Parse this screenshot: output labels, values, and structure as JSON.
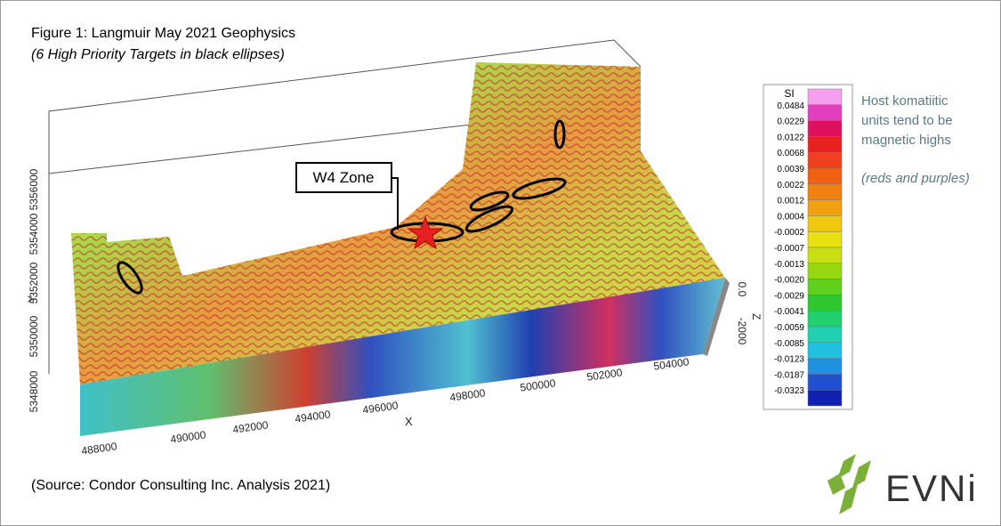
{
  "header": {
    "title": "Figure 1: Langmuir May 2021 Geophysics",
    "subtitle": "(6 High Priority Targets in black ellipses)"
  },
  "callout": {
    "label": "W4 Zone"
  },
  "axes": {
    "y": {
      "label": "Y",
      "ticks": [
        "5348000",
        "5350000",
        "5352000",
        "5354000",
        "5356000"
      ]
    },
    "x": {
      "label": "X",
      "ticks": [
        "488000",
        "490000",
        "492000",
        "494000",
        "496000",
        "498000",
        "500000",
        "502000",
        "504000"
      ]
    },
    "z": {
      "label": "Z",
      "ticks": [
        "0.0",
        "-2000"
      ]
    }
  },
  "colorbar": {
    "title": "SI",
    "labels": [
      "0.0484",
      "0.0229",
      "0.0122",
      "0.0068",
      "0.0039",
      "0.0022",
      "0.0012",
      "0.0004",
      "-0.0002",
      "-0.0007",
      "-0.0013",
      "-0.0020",
      "-0.0029",
      "-0.0041",
      "-0.0059",
      "-0.0085",
      "-0.0123",
      "-0.0187",
      "-0.0323"
    ]
  },
  "note": {
    "lines": [
      "Host komatiitic",
      "units tend to be",
      "magnetic highs"
    ],
    "emphasis": "(reds and purples)"
  },
  "footer": {
    "source": "(Source: Condor Consulting Inc. Analysis 2021)",
    "logo": "EVNi"
  }
}
